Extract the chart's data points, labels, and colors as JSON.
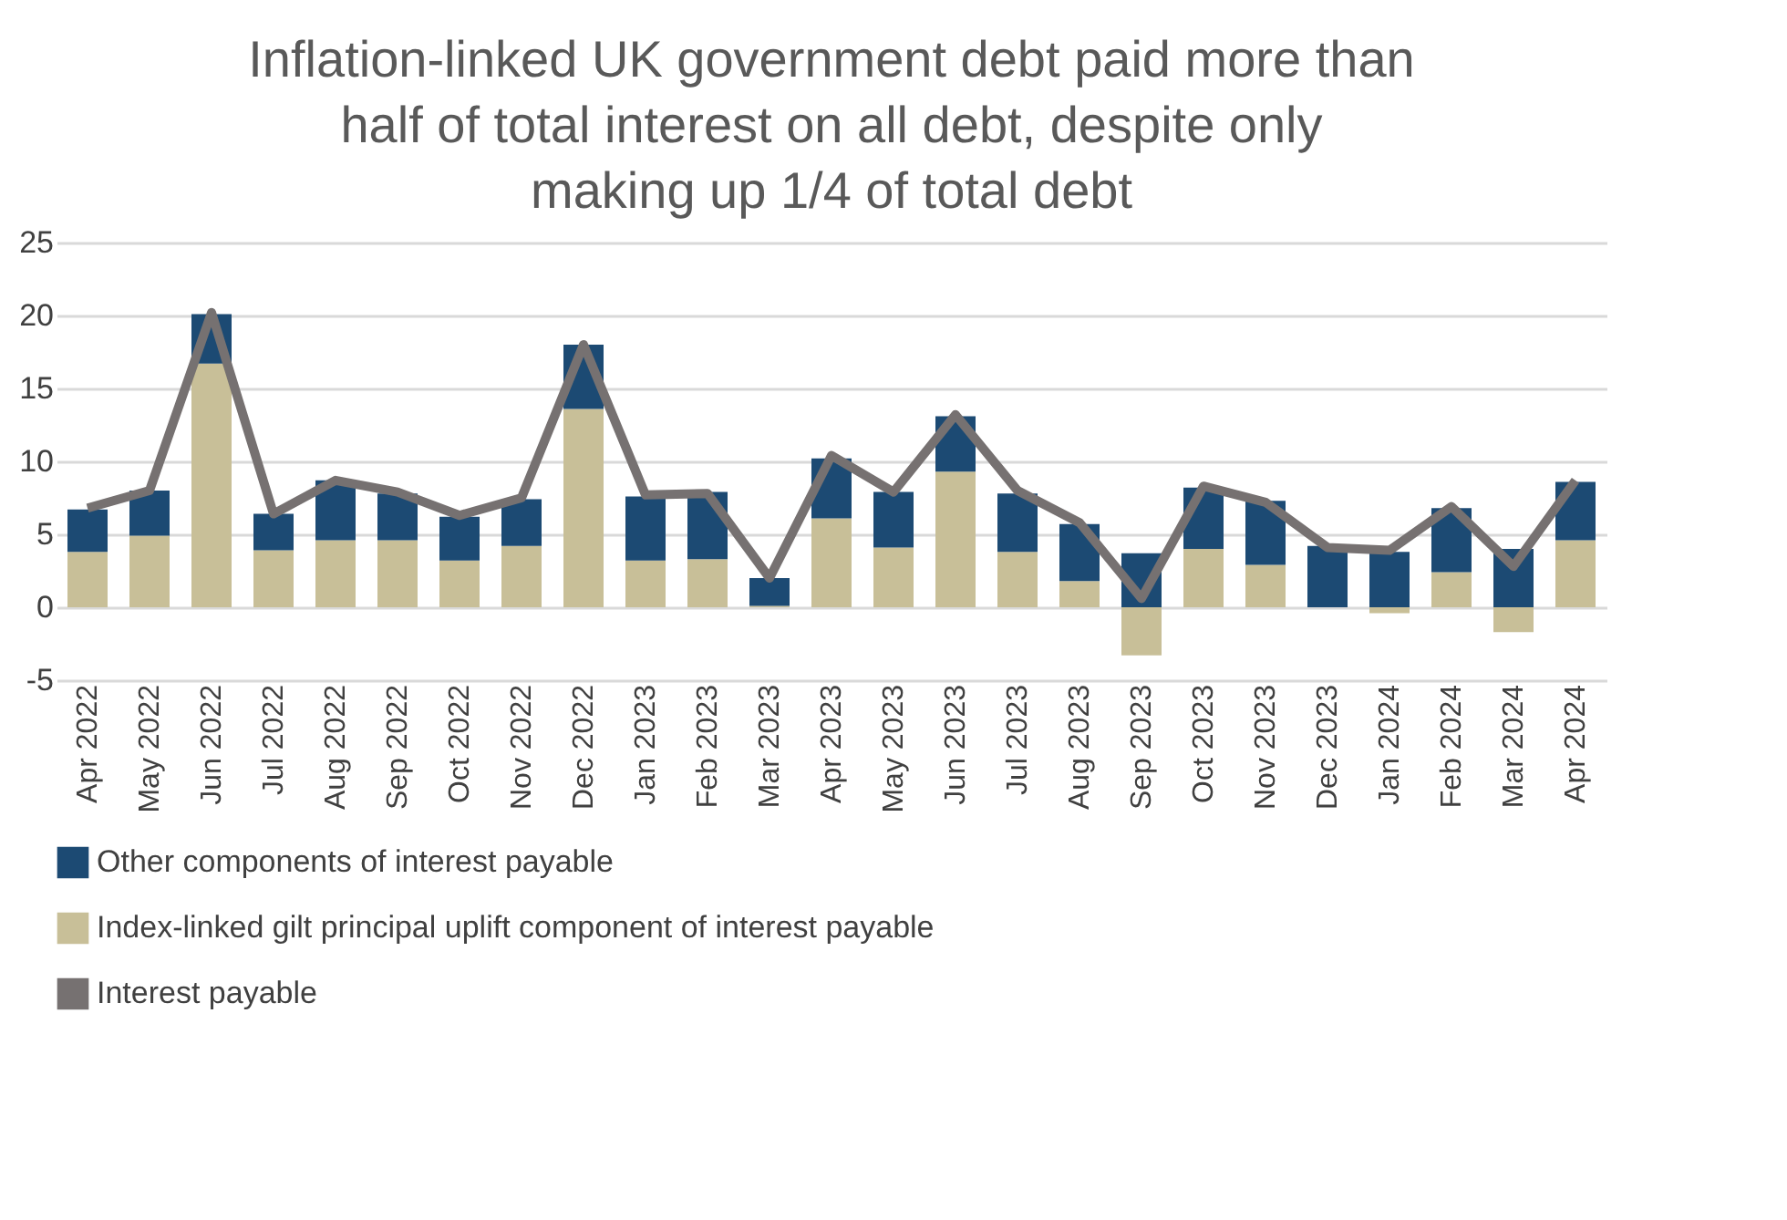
{
  "chart_data": {
    "type": "bar",
    "stacked": true,
    "title": "Inflation-linked UK government debt paid more than half of total interest on all debt, despite only making up 1/4 of total debt",
    "categories": [
      "Apr 2022",
      "May 2022",
      "Jun 2022",
      "Jul 2022",
      "Aug 2022",
      "Sep 2022",
      "Oct 2022",
      "Nov 2022",
      "Dec 2022",
      "Jan 2023",
      "Feb 2023",
      "Mar 2023",
      "Apr 2023",
      "May 2023",
      "Jun 2023",
      "Jul 2023",
      "Aug 2023",
      "Sep 2023",
      "Oct 2023",
      "Nov 2023",
      "Dec 2023",
      "Jan 2024",
      "Feb 2024",
      "Mar 2024",
      "Apr 2024"
    ],
    "series": [
      {
        "name": "Index-linked gilt principal uplift component of interest payable",
        "color": "#c8bf98",
        "values": [
          3.8,
          4.9,
          16.7,
          3.9,
          4.6,
          4.6,
          3.2,
          4.2,
          13.6,
          3.2,
          3.3,
          0.1,
          6.1,
          4.1,
          9.3,
          3.8,
          1.8,
          -3.3,
          4.0,
          2.9,
          0.0,
          -0.4,
          2.4,
          -1.7,
          4.6
        ]
      },
      {
        "name": "Other components of interest payable",
        "color": "#1c4a73",
        "values": [
          2.9,
          3.1,
          3.4,
          2.5,
          4.1,
          3.2,
          3.0,
          3.2,
          4.4,
          4.4,
          4.6,
          1.9,
          4.1,
          3.8,
          3.8,
          4.0,
          3.9,
          3.7,
          4.2,
          4.4,
          4.2,
          3.8,
          4.4,
          4.0,
          4.0
        ]
      },
      {
        "name": "Interest payable",
        "type": "line",
        "color": "#767171",
        "values": [
          6.8,
          8.0,
          20.2,
          6.4,
          8.7,
          7.9,
          6.3,
          7.5,
          18.0,
          7.7,
          7.8,
          2.0,
          10.4,
          7.9,
          13.2,
          8.0,
          5.8,
          0.6,
          8.3,
          7.2,
          4.1,
          3.9,
          6.9,
          2.8,
          8.7
        ]
      }
    ],
    "ylim": [
      -5,
      25
    ],
    "yticks": [
      -5,
      0,
      5,
      10,
      15,
      20,
      25
    ],
    "grid": "y",
    "legend": "bottom",
    "marker": "none",
    "line_style": "solid"
  }
}
